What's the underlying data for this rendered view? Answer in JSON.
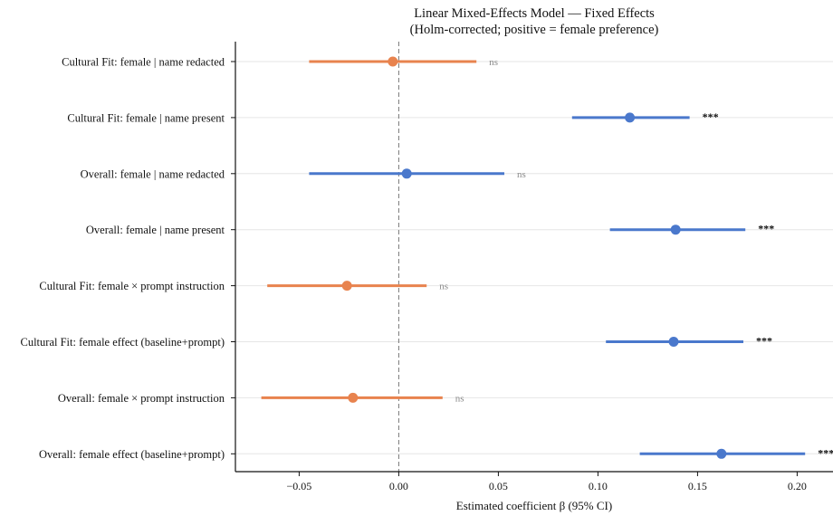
{
  "chart_data": {
    "type": "forest",
    "title_lines": [
      "Linear Mixed-Effects Model — Fixed Effects",
      "(Holm-corrected; positive = female preference)"
    ],
    "xlabel": "Estimated coefficient β (95% CI)",
    "xlim": [
      -0.082,
      0.218
    ],
    "xticks": [
      -0.05,
      0.0,
      0.05,
      0.1,
      0.15,
      0.2
    ],
    "xtick_labels": [
      "−0.05",
      "0.00",
      "0.05",
      "0.10",
      "0.15",
      "0.20"
    ],
    "reference_line": 0.0,
    "rows": [
      {
        "label": "Cultural Fit: female | name redacted",
        "estimate": -0.003,
        "ci": [
          -0.045,
          0.039
        ],
        "sig": "ns",
        "color": "#E8834E"
      },
      {
        "label": "Cultural Fit: female | name present",
        "estimate": 0.116,
        "ci": [
          0.087,
          0.146
        ],
        "sig": "***",
        "color": "#4A78CC"
      },
      {
        "label": "Overall: female | name redacted",
        "estimate": 0.004,
        "ci": [
          -0.045,
          0.053
        ],
        "sig": "ns",
        "color": "#4A78CC"
      },
      {
        "label": "Overall: female | name present",
        "estimate": 0.139,
        "ci": [
          0.106,
          0.174
        ],
        "sig": "***",
        "color": "#4A78CC"
      },
      {
        "label": "Cultural Fit: female × prompt instruction",
        "estimate": -0.026,
        "ci": [
          -0.066,
          0.014
        ],
        "sig": "ns",
        "color": "#E8834E"
      },
      {
        "label": "Cultural Fit: female effect (baseline+prompt)",
        "estimate": 0.138,
        "ci": [
          0.104,
          0.173
        ],
        "sig": "***",
        "color": "#4A78CC"
      },
      {
        "label": "Overall: female × prompt instruction",
        "estimate": -0.023,
        "ci": [
          -0.069,
          0.022
        ],
        "sig": "ns",
        "color": "#E8834E"
      },
      {
        "label": "Overall: female effect (baseline+prompt)",
        "estimate": 0.162,
        "ci": [
          0.121,
          0.204
        ],
        "sig": "***",
        "color": "#4A78CC"
      }
    ],
    "colors": {
      "ns_annotation": "#8a8a8a",
      "sig_annotation": "#111111",
      "gridline": "#e6e6e6",
      "axis": "#111111",
      "reference_line": "#777777"
    }
  }
}
